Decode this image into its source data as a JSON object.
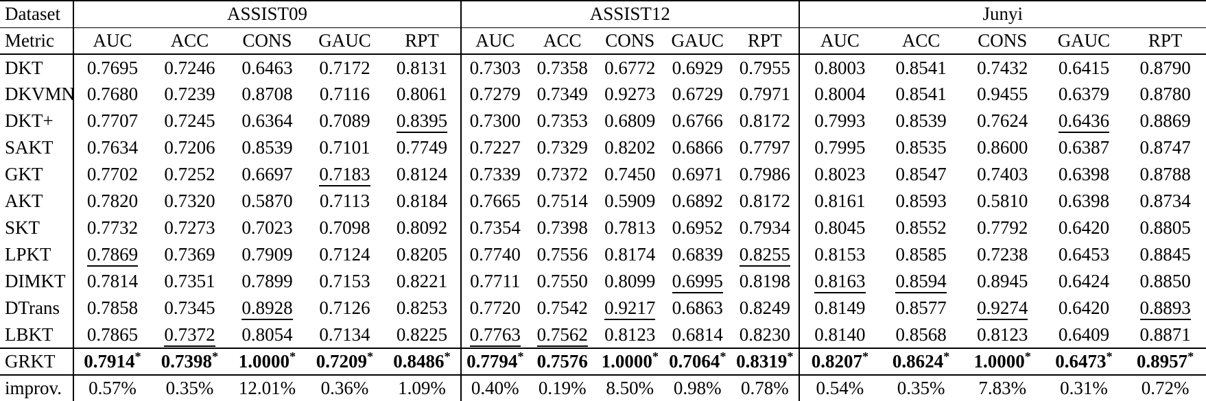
{
  "table": {
    "header": {
      "dataset_label": "Dataset",
      "metric_label": "Metric"
    },
    "groups": [
      {
        "name": "ASSIST09",
        "metrics": [
          "AUC",
          "ACC",
          "CONS",
          "GAUC",
          "RPT"
        ]
      },
      {
        "name": "ASSIST12",
        "metrics": [
          "AUC",
          "ACC",
          "CONS",
          "GAUC",
          "RPT"
        ]
      },
      {
        "name": "Junyi",
        "metrics": [
          "AUC",
          "ACC",
          "CONS",
          "GAUC",
          "RPT"
        ]
      }
    ],
    "rows": [
      {
        "model": "DKT",
        "values": [
          "0.7695",
          "0.7246",
          "0.6463",
          "0.7172",
          "0.8131",
          "0.7303",
          "0.7358",
          "0.6772",
          "0.6929",
          "0.7955",
          "0.8003",
          "0.8541",
          "0.7432",
          "0.6415",
          "0.8790"
        ],
        "underlined": []
      },
      {
        "model": "DKVMN",
        "values": [
          "0.7680",
          "0.7239",
          "0.8708",
          "0.7116",
          "0.8061",
          "0.7279",
          "0.7349",
          "0.9273",
          "0.6729",
          "0.7971",
          "0.8004",
          "0.8541",
          "0.9455",
          "0.6379",
          "0.8780"
        ],
        "underlined": []
      },
      {
        "model": "DKT+",
        "values": [
          "0.7707",
          "0.7245",
          "0.6364",
          "0.7089",
          "0.8395",
          "0.7300",
          "0.7353",
          "0.6809",
          "0.6766",
          "0.8172",
          "0.7993",
          "0.8539",
          "0.7624",
          "0.6436",
          "0.8869"
        ],
        "underlined": [
          4,
          13
        ]
      },
      {
        "model": "SAKT",
        "values": [
          "0.7634",
          "0.7206",
          "0.8539",
          "0.7101",
          "0.7749",
          "0.7227",
          "0.7329",
          "0.8202",
          "0.6866",
          "0.7797",
          "0.7995",
          "0.8535",
          "0.8600",
          "0.6387",
          "0.8747"
        ],
        "underlined": []
      },
      {
        "model": "GKT",
        "values": [
          "0.7702",
          "0.7252",
          "0.6697",
          "0.7183",
          "0.8124",
          "0.7339",
          "0.7372",
          "0.7450",
          "0.6971",
          "0.7986",
          "0.8023",
          "0.8547",
          "0.7403",
          "0.6398",
          "0.8788"
        ],
        "underlined": [
          3
        ]
      },
      {
        "model": "AKT",
        "values": [
          "0.7820",
          "0.7320",
          "0.5870",
          "0.7113",
          "0.8184",
          "0.7665",
          "0.7514",
          "0.5909",
          "0.6892",
          "0.8172",
          "0.8161",
          "0.8593",
          "0.5810",
          "0.6398",
          "0.8734"
        ],
        "underlined": []
      },
      {
        "model": "SKT",
        "values": [
          "0.7732",
          "0.7273",
          "0.7023",
          "0.7098",
          "0.8092",
          "0.7354",
          "0.7398",
          "0.7813",
          "0.6952",
          "0.7934",
          "0.8045",
          "0.8552",
          "0.7792",
          "0.6420",
          "0.8805"
        ],
        "underlined": []
      },
      {
        "model": "LPKT",
        "values": [
          "0.7869",
          "0.7369",
          "0.7909",
          "0.7124",
          "0.8205",
          "0.7740",
          "0.7556",
          "0.8174",
          "0.6839",
          "0.8255",
          "0.8153",
          "0.8585",
          "0.7238",
          "0.6453",
          "0.8845"
        ],
        "underlined": [
          0,
          9
        ]
      },
      {
        "model": "DIMKT",
        "values": [
          "0.7814",
          "0.7351",
          "0.7899",
          "0.7153",
          "0.8221",
          "0.7711",
          "0.7550",
          "0.8099",
          "0.6995",
          "0.8198",
          "0.8163",
          "0.8594",
          "0.8945",
          "0.6424",
          "0.8850"
        ],
        "underlined": [
          8,
          10,
          11
        ]
      },
      {
        "model": "DTrans",
        "values": [
          "0.7858",
          "0.7345",
          "0.8928",
          "0.7126",
          "0.8253",
          "0.7720",
          "0.7542",
          "0.9217",
          "0.6863",
          "0.8249",
          "0.8149",
          "0.8577",
          "0.9274",
          "0.6420",
          "0.8893"
        ],
        "underlined": [
          2,
          7,
          12,
          14
        ]
      },
      {
        "model": "LBKT",
        "values": [
          "0.7865",
          "0.7372",
          "0.8054",
          "0.7134",
          "0.8225",
          "0.7763",
          "0.7562",
          "0.8123",
          "0.6814",
          "0.8230",
          "0.8140",
          "0.8568",
          "0.8123",
          "0.6409",
          "0.8871"
        ],
        "underlined": [
          1,
          5,
          6
        ]
      }
    ],
    "grkt_row": {
      "model": "GRKT",
      "values": [
        "0.7914",
        "0.7398",
        "1.0000",
        "0.7209",
        "0.8486",
        "0.7794",
        "0.7576",
        "1.0000",
        "0.7064",
        "0.8319",
        "0.8207",
        "0.8624",
        "1.0000",
        "0.6473",
        "0.8957"
      ],
      "starred": [
        true,
        true,
        true,
        true,
        true,
        true,
        false,
        true,
        true,
        true,
        true,
        true,
        true,
        true,
        true
      ],
      "star_symbol": "*"
    },
    "improv_row": {
      "label": "improv.",
      "values": [
        "0.57%",
        "0.35%",
        "12.01%",
        "0.36%",
        "1.09%",
        "0.40%",
        "0.19%",
        "8.50%",
        "0.98%",
        "0.78%",
        "0.54%",
        "0.35%",
        "7.83%",
        "0.31%",
        "0.72%"
      ]
    }
  }
}
